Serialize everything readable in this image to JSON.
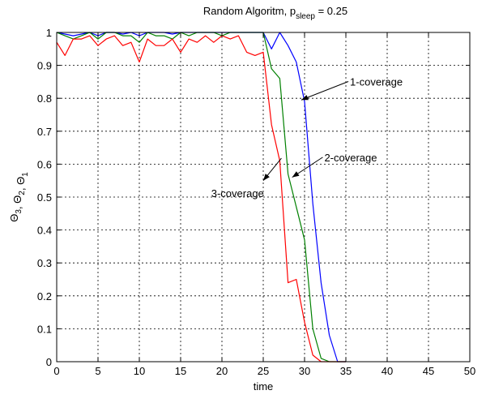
{
  "chart_data": {
    "type": "line",
    "title": {
      "main": "Random Algoritm, p",
      "sub": "sleep",
      "tail": " = 0.25"
    },
    "xlabel": "time",
    "ylabel": {
      "parts": [
        {
          "t": "Θ",
          "s": "3"
        },
        {
          "t": ", Θ",
          "s": "2"
        },
        {
          "t": ", Θ",
          "s": "1"
        }
      ]
    },
    "xlim": [
      0,
      50
    ],
    "ylim": [
      0,
      1
    ],
    "xticks": [
      0,
      5,
      10,
      15,
      20,
      25,
      30,
      35,
      40,
      45,
      50
    ],
    "yticks": [
      0,
      0.1,
      0.2,
      0.3,
      0.4,
      0.5,
      0.6,
      0.7,
      0.8,
      0.9,
      1
    ],
    "xtick_labels": [
      "0",
      "5",
      "10",
      "15",
      "20",
      "25",
      "30",
      "35",
      "40",
      "45",
      "50"
    ],
    "ytick_labels": [
      "0",
      "0.1",
      "0.2",
      "0.3",
      "0.4",
      "0.5",
      "0.6",
      "0.7",
      "0.8",
      "0.9",
      "1"
    ],
    "grid": true,
    "series": [
      {
        "color": "#0000ff",
        "x": [
          0,
          1,
          2,
          3,
          4,
          5,
          6,
          7,
          8,
          9,
          10,
          11,
          12,
          13,
          14,
          15,
          16,
          17,
          18,
          19,
          20,
          21,
          22,
          23,
          24,
          25,
          26,
          27,
          28,
          29,
          30,
          31,
          32,
          33,
          34,
          35
        ],
        "y": [
          1,
          0.995,
          0.99,
          0.995,
          1,
          0.99,
          1,
          1,
          0.995,
          1,
          0.99,
          1,
          1,
          1,
          0.995,
          1,
          1,
          1,
          1,
          1,
          1,
          1,
          1,
          1,
          1,
          1,
          0.95,
          1,
          0.96,
          0.91,
          0.79,
          0.48,
          0.24,
          0.08,
          0,
          0
        ]
      },
      {
        "color": "#008000",
        "x": [
          0,
          1,
          2,
          3,
          4,
          5,
          6,
          7,
          8,
          9,
          10,
          11,
          12,
          13,
          14,
          15,
          16,
          17,
          18,
          19,
          20,
          21,
          22,
          23,
          24,
          25,
          26,
          27,
          28,
          29,
          30,
          31,
          32,
          33,
          34,
          35
        ],
        "y": [
          1,
          0.99,
          0.98,
          0.99,
          1,
          0.98,
          1,
          1,
          0.99,
          0.99,
          0.97,
          1,
          0.99,
          0.99,
          0.98,
          1,
          0.99,
          1,
          1,
          1,
          0.99,
          1,
          1,
          1,
          1,
          1,
          0.89,
          0.86,
          0.57,
          0.47,
          0.37,
          0.1,
          0.01,
          0,
          0,
          0
        ]
      },
      {
        "color": "#ff0000",
        "x": [
          0,
          1,
          2,
          3,
          4,
          5,
          6,
          7,
          8,
          9,
          10,
          11,
          12,
          13,
          14,
          15,
          16,
          17,
          18,
          19,
          20,
          21,
          22,
          23,
          24,
          25,
          26,
          27,
          28,
          29,
          30,
          31,
          32,
          33,
          34,
          35
        ],
        "y": [
          0.97,
          0.93,
          0.98,
          0.98,
          0.99,
          0.96,
          0.98,
          0.99,
          0.96,
          0.97,
          0.91,
          0.98,
          0.96,
          0.96,
          0.98,
          0.94,
          0.98,
          0.97,
          0.99,
          0.97,
          0.99,
          0.98,
          0.99,
          0.94,
          0.93,
          0.94,
          0.72,
          0.61,
          0.24,
          0.25,
          0.12,
          0.02,
          0,
          0,
          0,
          0
        ]
      }
    ],
    "annotations": [
      {
        "text": "1-coverage",
        "from": [
          35.3,
          0.851
        ],
        "to": [
          29.6,
          0.795
        ]
      },
      {
        "text": "2-coverage",
        "from": [
          32.2,
          0.621
        ],
        "to": [
          28.5,
          0.56
        ]
      },
      {
        "text": "3-coverage",
        "from": [
          27.2,
          0.618
        ],
        "to": [
          25.0,
          0.55
        ],
        "label_at": [
          18.7,
          0.5
        ]
      }
    ]
  }
}
